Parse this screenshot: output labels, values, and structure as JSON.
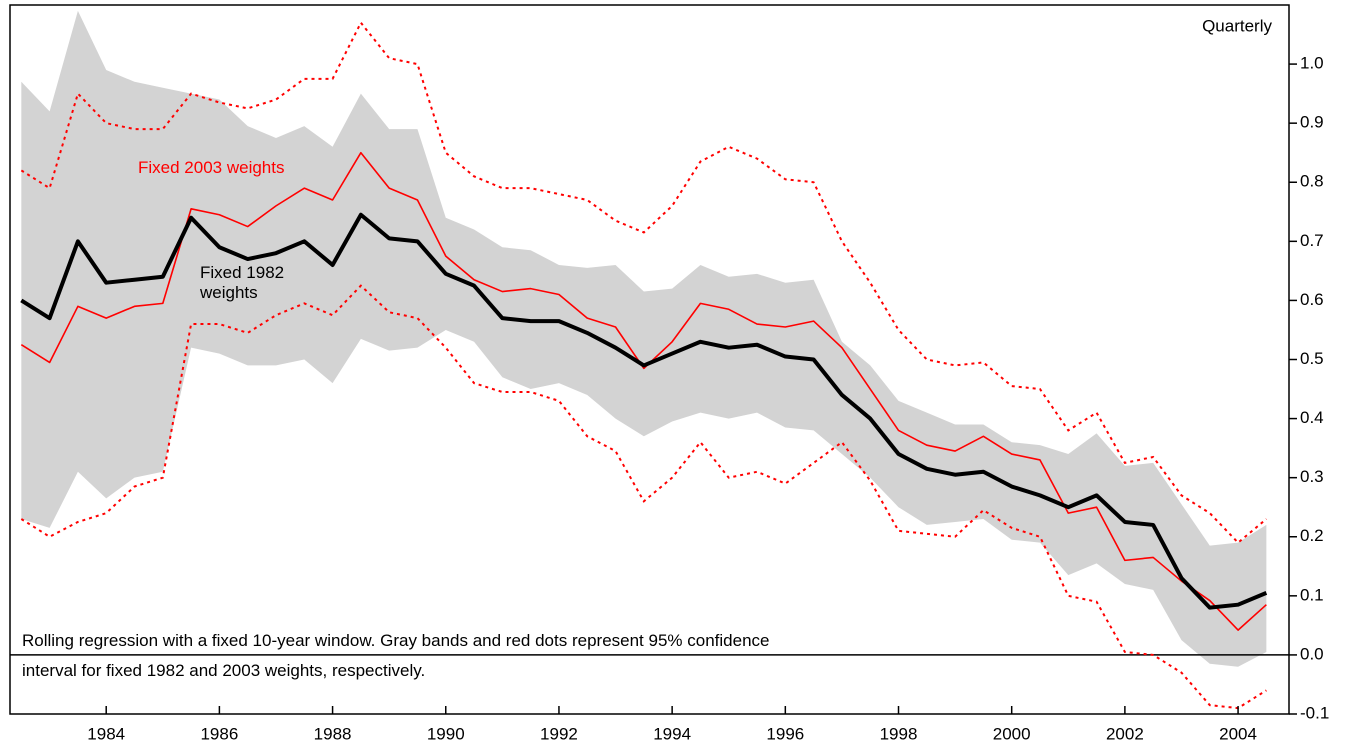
{
  "chart_data": {
    "type": "line",
    "annotations": {
      "frequency": "Quarterly"
    },
    "note": [
      "Rolling regression with a fixed 10-year window. Gray bands and red dots represent 95% confidence",
      "interval for fixed 1982 and 2003 weights, respectively."
    ],
    "x": [
      1982.5,
      1983,
      1983.5,
      1984,
      1984.5,
      1985,
      1985.5,
      1986,
      1986.5,
      1987,
      1987.5,
      1988,
      1988.5,
      1989,
      1989.5,
      1990,
      1990.5,
      1991,
      1991.5,
      1992,
      1992.5,
      1993,
      1993.5,
      1994,
      1994.5,
      1995,
      1995.5,
      1996,
      1996.5,
      1997,
      1997.5,
      1998,
      1998.5,
      1999,
      1999.5,
      2000,
      2000.5,
      2001,
      2001.5,
      2002,
      2002.5,
      2003,
      2003.5,
      2004,
      2004.5
    ],
    "xlim": [
      1982.3,
      2004.9
    ],
    "xticks": [
      1984,
      1986,
      1988,
      1990,
      1992,
      1994,
      1996,
      1998,
      2000,
      2002,
      2004
    ],
    "ylim": [
      -0.1,
      1.1
    ],
    "yticks": [
      -0.1,
      {
        "value": 0,
        "label": "0.0"
      },
      0.1,
      0.2,
      0.3,
      0.4,
      0.5,
      0.6,
      0.7,
      0.8,
      0.9,
      {
        "value": 1,
        "label": "1.0"
      }
    ],
    "bands": {
      "color": "#d3d3d3",
      "upper": [
        0.97,
        0.92,
        1.09,
        0.99,
        0.97,
        0.96,
        0.95,
        0.94,
        0.895,
        0.875,
        0.895,
        0.86,
        0.95,
        0.89,
        0.89,
        0.74,
        0.72,
        0.69,
        0.685,
        0.66,
        0.655,
        0.66,
        0.615,
        0.62,
        0.66,
        0.64,
        0.645,
        0.63,
        0.635,
        0.53,
        0.49,
        0.43,
        0.41,
        0.39,
        0.39,
        0.36,
        0.355,
        0.34,
        0.375,
        0.32,
        0.325,
        0.255,
        0.185,
        0.19,
        0.22
      ],
      "lower": [
        0.23,
        0.215,
        0.31,
        0.265,
        0.3,
        0.31,
        0.52,
        0.51,
        0.49,
        0.49,
        0.5,
        0.46,
        0.535,
        0.515,
        0.52,
        0.55,
        0.53,
        0.47,
        0.45,
        0.46,
        0.44,
        0.4,
        0.37,
        0.395,
        0.41,
        0.4,
        0.41,
        0.385,
        0.38,
        0.34,
        0.3,
        0.25,
        0.22,
        0.225,
        0.23,
        0.195,
        0.19,
        0.135,
        0.155,
        0.12,
        0.11,
        0.025,
        -0.015,
        -0.02,
        0.005
      ]
    },
    "dotted": {
      "color": "#ff0000",
      "upper": [
        0.82,
        0.79,
        0.95,
        0.9,
        0.89,
        0.89,
        0.95,
        0.935,
        0.925,
        0.94,
        0.975,
        0.975,
        1.07,
        1.01,
        1.0,
        0.85,
        0.81,
        0.79,
        0.79,
        0.78,
        0.77,
        0.735,
        0.715,
        0.76,
        0.835,
        0.86,
        0.84,
        0.805,
        0.8,
        0.7,
        0.63,
        0.55,
        0.5,
        0.49,
        0.495,
        0.455,
        0.45,
        0.38,
        0.41,
        0.325,
        0.335,
        0.27,
        0.24,
        0.19,
        0.23
      ],
      "lower": [
        0.23,
        0.2,
        0.225,
        0.24,
        0.285,
        0.3,
        0.56,
        0.56,
        0.545,
        0.575,
        0.595,
        0.575,
        0.625,
        0.58,
        0.57,
        0.52,
        0.46,
        0.445,
        0.445,
        0.43,
        0.37,
        0.345,
        0.26,
        0.3,
        0.36,
        0.3,
        0.31,
        0.29,
        0.325,
        0.36,
        0.295,
        0.21,
        0.205,
        0.2,
        0.245,
        0.215,
        0.2,
        0.1,
        0.09,
        0.005,
        0.0,
        -0.03,
        -0.085,
        -0.09,
        -0.06
      ]
    },
    "series": [
      {
        "name": "Fixed 2003 weights",
        "color": "#ff0000",
        "linewidth": 1.6,
        "values": [
          0.525,
          0.495,
          0.59,
          0.57,
          0.59,
          0.595,
          0.755,
          0.745,
          0.725,
          0.76,
          0.79,
          0.77,
          0.85,
          0.79,
          0.77,
          0.675,
          0.635,
          0.615,
          0.62,
          0.61,
          0.57,
          0.555,
          0.485,
          0.53,
          0.595,
          0.585,
          0.56,
          0.555,
          0.565,
          0.52,
          0.45,
          0.38,
          0.355,
          0.345,
          0.37,
          0.34,
          0.33,
          0.24,
          0.25,
          0.16,
          0.165,
          0.125,
          0.092,
          0.042,
          0.085
        ]
      },
      {
        "name": "Fixed 1982 weights",
        "color": "#000000",
        "linewidth": 4,
        "values": [
          0.6,
          0.57,
          0.7,
          0.63,
          0.635,
          0.64,
          0.74,
          0.69,
          0.67,
          0.68,
          0.7,
          0.66,
          0.745,
          0.705,
          0.7,
          0.645,
          0.625,
          0.57,
          0.565,
          0.565,
          0.545,
          0.52,
          0.49,
          0.51,
          0.53,
          0.52,
          0.525,
          0.505,
          0.5,
          0.44,
          0.4,
          0.34,
          0.315,
          0.305,
          0.31,
          0.285,
          0.27,
          0.25,
          0.27,
          0.225,
          0.22,
          0.13,
          0.08,
          0.085,
          0.105
        ]
      }
    ]
  }
}
